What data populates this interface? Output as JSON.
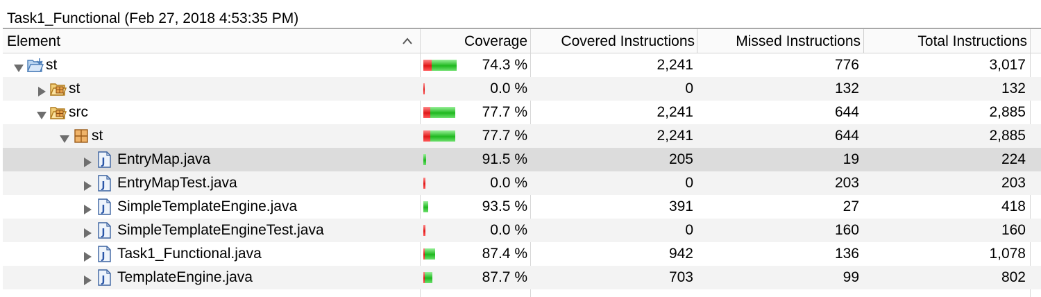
{
  "session": {
    "title": "Task1_Functional (Feb 27, 2018 4:53:35 PM)"
  },
  "columns": {
    "element": "Element",
    "coverage": "Coverage",
    "covered": "Covered Instructions",
    "missed": "Missed Instructions",
    "total": "Total Instructions"
  },
  "colors": {
    "covered_bar": "#1fb81f",
    "missed_bar": "#e01818",
    "selected_row": "#dcdcdc"
  },
  "rows": [
    {
      "label": "st",
      "icon": "project-folder-icon",
      "depth": 0,
      "expanded": true,
      "coverage_text": "74.3 %",
      "coverage_fraction": 0.743,
      "covered": "2,241",
      "missed": "776",
      "total": "3,017"
    },
    {
      "label": "st",
      "icon": "package-folder-icon",
      "depth": 1,
      "expanded": false,
      "coverage_text": "0.0 %",
      "coverage_fraction": 0.0,
      "covered": "0",
      "missed": "132",
      "total": "132"
    },
    {
      "label": "src",
      "icon": "package-folder-icon",
      "depth": 1,
      "expanded": true,
      "coverage_text": "77.7 %",
      "coverage_fraction": 0.777,
      "covered": "2,241",
      "missed": "644",
      "total": "2,885"
    },
    {
      "label": "st",
      "icon": "package-icon",
      "depth": 2,
      "expanded": true,
      "coverage_text": "77.7 %",
      "coverage_fraction": 0.777,
      "covered": "2,241",
      "missed": "644",
      "total": "2,885"
    },
    {
      "label": "EntryMap.java",
      "icon": "java-file-icon",
      "depth": 3,
      "expanded": false,
      "selected": true,
      "coverage_text": "91.5 %",
      "coverage_fraction": 0.915,
      "covered": "205",
      "missed": "19",
      "total": "224"
    },
    {
      "label": "EntryMapTest.java",
      "icon": "java-file-icon",
      "depth": 3,
      "expanded": false,
      "coverage_text": "0.0 %",
      "coverage_fraction": 0.0,
      "covered": "0",
      "missed": "203",
      "total": "203"
    },
    {
      "label": "SimpleTemplateEngine.java",
      "icon": "java-file-icon",
      "depth": 3,
      "expanded": false,
      "coverage_text": "93.5 %",
      "coverage_fraction": 0.935,
      "covered": "391",
      "missed": "27",
      "total": "418"
    },
    {
      "label": "SimpleTemplateEngineTest.java",
      "icon": "java-file-icon",
      "depth": 3,
      "expanded": false,
      "coverage_text": "0.0 %",
      "coverage_fraction": 0.0,
      "covered": "0",
      "missed": "160",
      "total": "160"
    },
    {
      "label": "Task1_Functional.java",
      "icon": "java-file-icon",
      "depth": 3,
      "expanded": false,
      "coverage_text": "87.4 %",
      "coverage_fraction": 0.874,
      "covered": "942",
      "missed": "136",
      "total": "1,078"
    },
    {
      "label": "TemplateEngine.java",
      "icon": "java-file-icon",
      "depth": 3,
      "expanded": false,
      "coverage_text": "87.7 %",
      "coverage_fraction": 0.877,
      "covered": "703",
      "missed": "99",
      "total": "802"
    }
  ]
}
